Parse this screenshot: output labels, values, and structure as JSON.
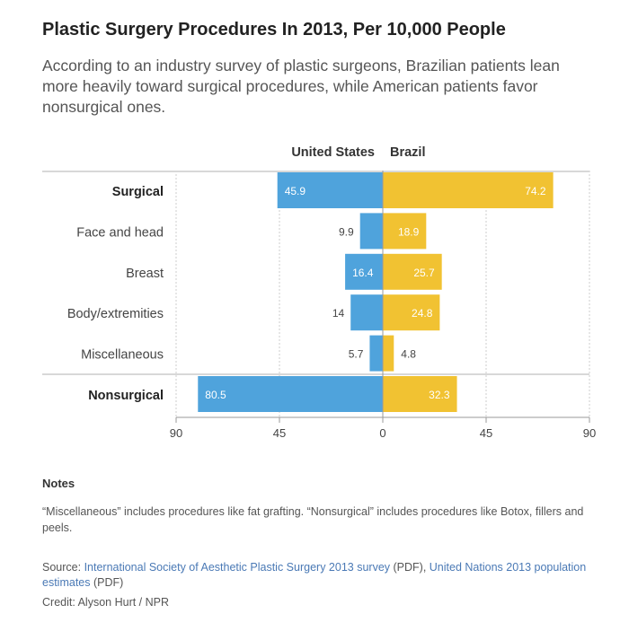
{
  "header": {
    "title": "Plastic Surgery Procedures In 2013, Per 10,000 People",
    "subtitle": "According to an industry survey of plastic surgeons, Brazilian patients lean more heavily toward surgical procedures, while American patients favor nonsurgical ones."
  },
  "chart_data": {
    "type": "bar",
    "orientation": "horizontal-diverging",
    "title": "Plastic Surgery Procedures In 2013, Per 10,000 People",
    "categories": [
      "Surgical",
      "Face and head",
      "Breast",
      "Body/extremities",
      "Miscellaneous",
      "Nonsurgical"
    ],
    "bold_categories": [
      "Surgical",
      "Nonsurgical"
    ],
    "series": [
      {
        "name": "United States",
        "direction": "left",
        "color": "#4fa3dc",
        "values": [
          45.9,
          9.9,
          16.4,
          14,
          5.7,
          80.5
        ],
        "labels": [
          "45.9",
          "9.9",
          "16.4",
          "14",
          "5.7",
          "80.5"
        ]
      },
      {
        "name": "Brazil",
        "direction": "right",
        "color": "#f1c232",
        "values": [
          74.2,
          18.9,
          25.7,
          24.8,
          4.8,
          32.3
        ],
        "labels": [
          "74.2",
          "18.9",
          "25.7",
          "24.8",
          "4.8",
          "32.3"
        ]
      }
    ],
    "xlim": [
      -90,
      90
    ],
    "ticks": [
      -90,
      -45,
      0,
      45,
      90
    ],
    "tick_labels": [
      "90",
      "45",
      "0",
      "45",
      "90"
    ],
    "grid": true
  },
  "notes": {
    "heading": "Notes",
    "text": "“Miscellaneous” includes procedures like fat grafting. “Nonsurgical” includes procedures like Botox, fillers and peels."
  },
  "source": {
    "prefix": "Source: ",
    "link1": "International Society of Aesthetic Plastic Surgery 2013 survey",
    "mid": " (PDF), ",
    "link2": "United Nations 2013 population estimates",
    "suffix": " (PDF)"
  },
  "credit": "Credit: Alyson Hurt / NPR"
}
